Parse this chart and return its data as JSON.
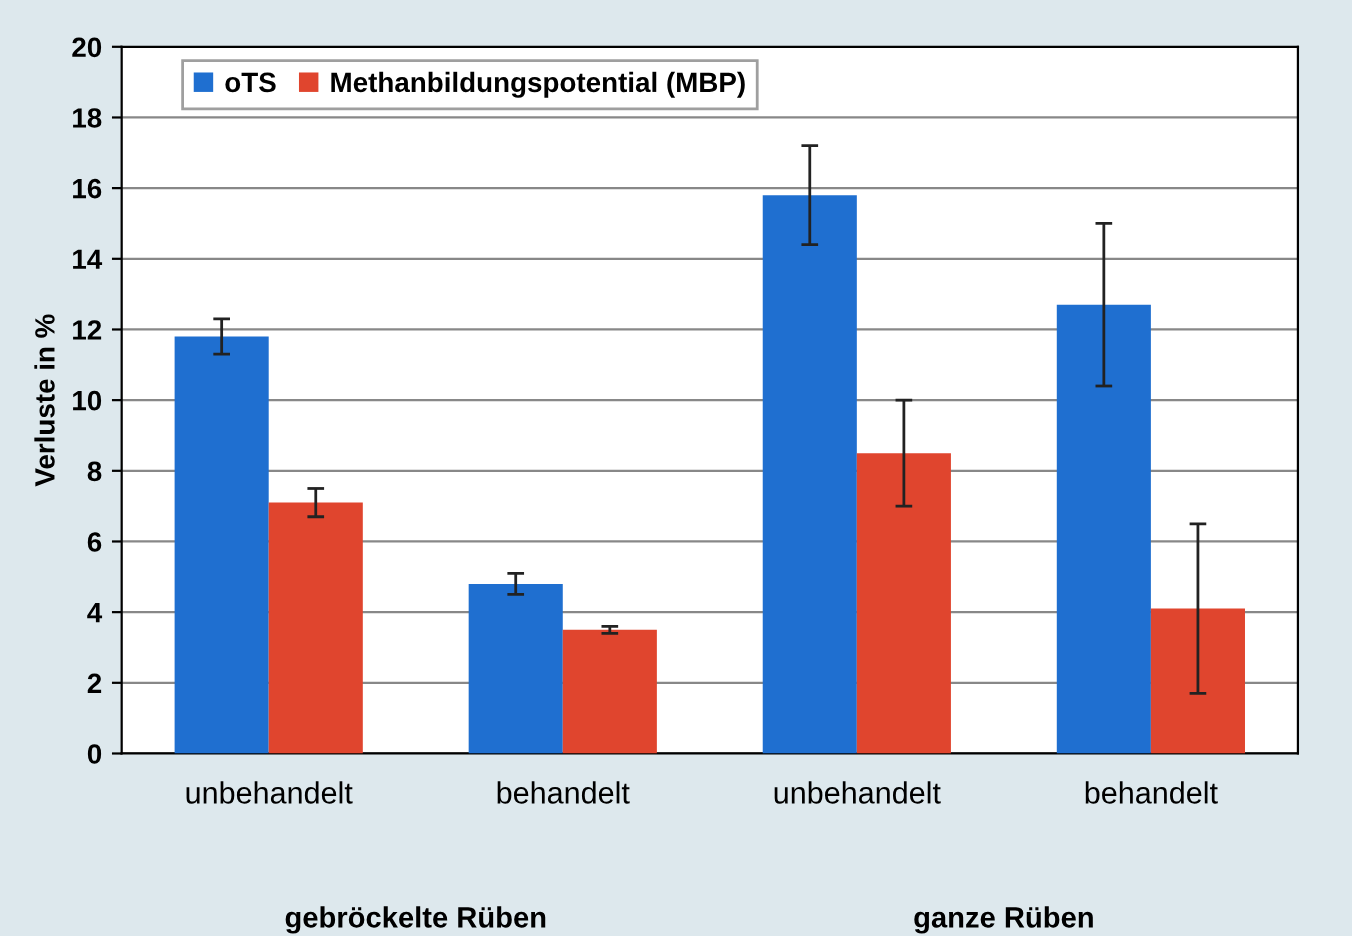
{
  "chart_data": {
    "type": "bar",
    "ylabel": "Verluste in %",
    "categories": [
      "unbehandelt",
      "behandelt",
      "unbehandelt",
      "behandelt"
    ],
    "series": [
      {
        "name": "oTS",
        "color": "#1f6fd0",
        "values": [
          11.8,
          4.8,
          15.8,
          12.7
        ],
        "errors": [
          0.5,
          0.3,
          1.4,
          2.3
        ]
      },
      {
        "name": "Methanbildungspotential (MBP)",
        "color": "#e0452e",
        "values": [
          7.1,
          3.5,
          8.5,
          4.1
        ],
        "errors": [
          0.4,
          0.1,
          1.5,
          2.4
        ]
      }
    ],
    "annotations": [
      "gebröckelte Rüben",
      "ganze Rüben"
    ],
    "ylim": [
      0,
      20
    ],
    "yticks": [
      0,
      2,
      4,
      6,
      8,
      10,
      12,
      14,
      16,
      18,
      20
    ],
    "grid": "y",
    "legend": "top left"
  }
}
